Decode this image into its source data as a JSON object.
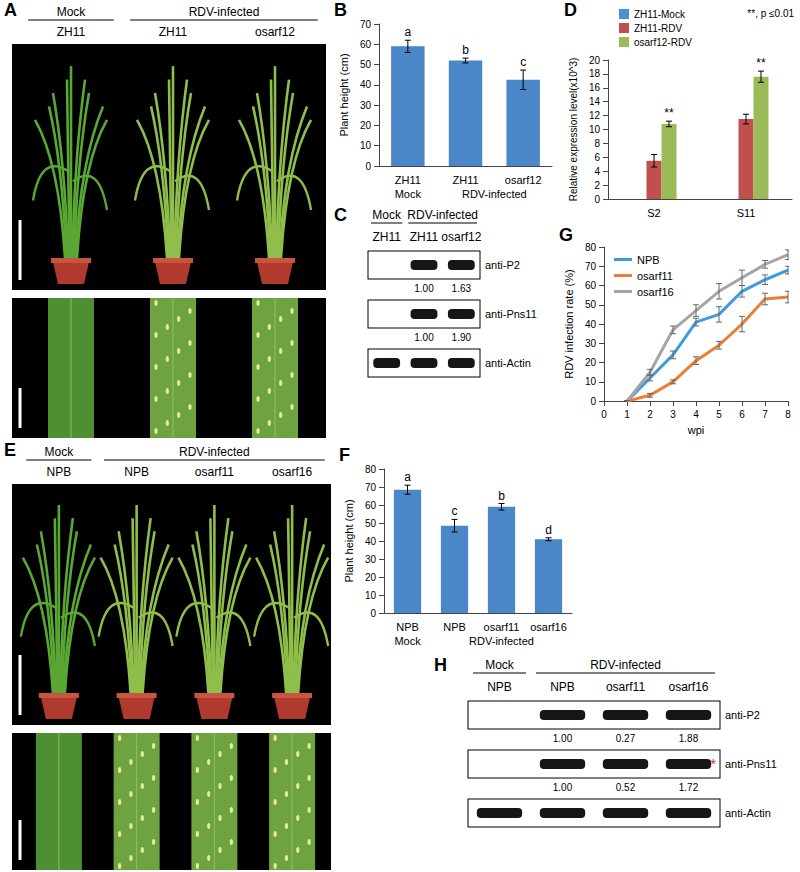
{
  "chart_data": [
    {
      "panel_label": "B",
      "type": "bar",
      "y_label": "Plant height (cm)",
      "categories": [
        "ZH11",
        "ZH11",
        "osarf12"
      ],
      "group_labels": [
        "Mock",
        "RDV-infected",
        "RDV-infected"
      ],
      "values": [
        59,
        52,
        42.5
      ],
      "errors": [
        3,
        1.2,
        4.8
      ],
      "significance": [
        "a",
        "b",
        "c"
      ],
      "color": "#4a86c8",
      "ylim": [
        0,
        70
      ],
      "yticks": [
        0,
        10,
        20,
        30,
        40,
        50,
        60,
        70
      ],
      "grid": false
    },
    {
      "panel_label": "D",
      "type": "bar",
      "y_label": "Relative expression level(x10^3)",
      "categories": [
        "S2",
        "S11"
      ],
      "series": [
        {
          "name": "ZH11-Mock",
          "color": "#4a90d9",
          "values": [
            0,
            0
          ]
        },
        {
          "name": "ZH11-RDV",
          "color": "#c0504d",
          "values": [
            5.5,
            11.5
          ],
          "errors": [
            0.9,
            0.7
          ]
        },
        {
          "name": "osarf12-RDV",
          "color": "#9bbb59",
          "values": [
            10.8,
            17.6
          ],
          "errors": [
            0.4,
            0.8
          ],
          "significance": [
            "**",
            "**"
          ]
        }
      ],
      "annotation": "**, p ≤0.01",
      "legend": "upper left",
      "ylim": [
        0,
        20
      ],
      "yticks": [
        0,
        2,
        4,
        6,
        8,
        10,
        12,
        14,
        16,
        18,
        20
      ],
      "grid": false
    },
    {
      "panel_label": "F",
      "type": "bar",
      "y_label": "Plant height (cm)",
      "categories": [
        "NPB",
        "NPB",
        "osarf11",
        "osarf16"
      ],
      "group_labels": [
        "Mock",
        "RDV-infected",
        "RDV-infected",
        "RDV-infected"
      ],
      "values": [
        68.5,
        48.5,
        59,
        41
      ],
      "errors": [
        2.5,
        3.5,
        1.8,
        0.8
      ],
      "significance": [
        "a",
        "c",
        "b",
        "d"
      ],
      "color": "#4a86c8",
      "ylim": [
        0,
        80
      ],
      "yticks": [
        0,
        10,
        20,
        30,
        40,
        50,
        60,
        70,
        80
      ],
      "grid": false
    },
    {
      "panel_label": "G",
      "type": "line",
      "x_label": "wpi",
      "y_label": "RDV infection rate (%)",
      "x": [
        1,
        2,
        3,
        4,
        5,
        6,
        7,
        8
      ],
      "series": [
        {
          "name": "NPB",
          "color": "#3f9be0",
          "values": [
            0,
            12,
            24,
            41,
            45,
            57,
            63,
            68
          ],
          "errors": [
            0,
            1.5,
            2,
            2,
            4,
            3,
            2.5,
            2
          ]
        },
        {
          "name": "osarf11",
          "color": "#ed7d31",
          "values": [
            0,
            3,
            10,
            21,
            29,
            40,
            53,
            54
          ],
          "errors": [
            0,
            1,
            1,
            2,
            2,
            4,
            3,
            3
          ]
        },
        {
          "name": "osarf16",
          "color": "#a5a5a5",
          "values": [
            0,
            15,
            37,
            47,
            57,
            64,
            71,
            76
          ],
          "errors": [
            0,
            1.5,
            2,
            3,
            4,
            4,
            2,
            2.5
          ]
        }
      ],
      "legend": "upper left",
      "xlim": [
        0,
        8
      ],
      "xticks": [
        0,
        1,
        2,
        3,
        4,
        5,
        6,
        7,
        8
      ],
      "ylim": [
        0,
        80
      ],
      "yticks": [
        0,
        10,
        20,
        30,
        40,
        50,
        60,
        70,
        80
      ],
      "grid": false
    }
  ],
  "photo_panels": [
    {
      "panel_label": "A",
      "header_groups": [
        "Mock",
        "RDV-infected",
        "RDV-infected"
      ],
      "columns": [
        "ZH11",
        "ZH11",
        "osarf12"
      ]
    },
    {
      "panel_label": "E",
      "header_groups": [
        "Mock",
        "RDV-infected",
        "RDV-infected",
        "RDV-infected"
      ],
      "columns": [
        "NPB",
        "NPB",
        "osarf11",
        "osarf16"
      ]
    }
  ],
  "blot_panels": [
    {
      "panel_label": "C",
      "header_groups": [
        "Mock",
        "RDV-infected",
        "RDV-infected"
      ],
      "columns": [
        "ZH11",
        "ZH11",
        "osarf12"
      ],
      "rows": [
        {
          "antibody": "anti-P2",
          "quantification": [
            null,
            "1.00",
            "1.63"
          ]
        },
        {
          "antibody": "anti-Pns11",
          "quantification": [
            null,
            "1.00",
            "1.90"
          ]
        },
        {
          "antibody": "anti-Actin"
        }
      ]
    },
    {
      "panel_label": "H",
      "header_groups": [
        "Mock",
        "RDV-infected",
        "RDV-infected",
        "RDV-infected"
      ],
      "columns": [
        "NPB",
        "NPB",
        "osarf11",
        "osarf16"
      ],
      "rows": [
        {
          "antibody": "anti-P2",
          "quantification": [
            null,
            "1.00",
            "0.27",
            "1.88"
          ]
        },
        {
          "antibody": "anti-Pns11",
          "quantification": [
            null,
            "1.00",
            "0.52",
            "1.72"
          ],
          "annotation": "*"
        },
        {
          "antibody": "anti-Actin"
        }
      ]
    }
  ]
}
